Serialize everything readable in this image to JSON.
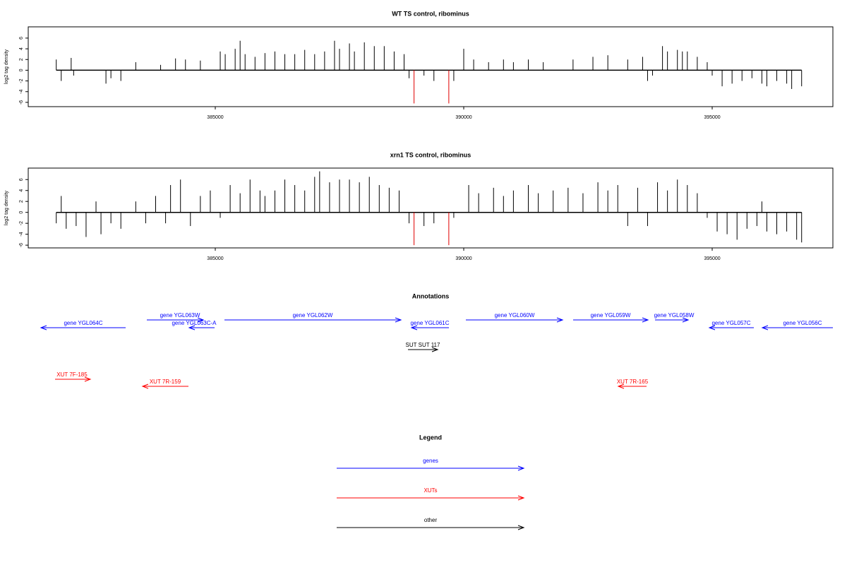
{
  "chart_data": [
    {
      "type": "bar",
      "title": "WT TS control, ribominus",
      "ylabel": "log2 tag density",
      "x": [
        381800,
        381900,
        382100,
        382150,
        382800,
        382900,
        383100,
        383400,
        383900,
        384200,
        384400,
        384700,
        385100,
        385200,
        385400,
        385500,
        385600,
        385800,
        386000,
        386200,
        386400,
        386600,
        386800,
        387000,
        387200,
        387400,
        387500,
        387700,
        387800,
        388000,
        388200,
        388400,
        388600,
        388800,
        388900,
        389200,
        389400,
        389800,
        390000,
        390200,
        390500,
        390800,
        391000,
        391300,
        391600,
        392200,
        392600,
        392900,
        393300,
        393600,
        393700,
        393800,
        394000,
        394100,
        394300,
        394400,
        394500,
        394700,
        394900,
        395000,
        395200,
        395400,
        395600,
        395800,
        396000,
        396100,
        396300,
        396500,
        396600,
        396800
      ],
      "values": [
        2,
        -2,
        2.3,
        -1,
        -2.5,
        -1.5,
        -2,
        1.5,
        1,
        2.2,
        2,
        1.8,
        3.5,
        3,
        4,
        5.5,
        3,
        2.5,
        3.2,
        3.5,
        3,
        3,
        3.8,
        3,
        3.5,
        5.5,
        4,
        5,
        3.5,
        5.2,
        4.5,
        4.5,
        3.5,
        3,
        -1.5,
        -1,
        -2,
        -2,
        4,
        2,
        1.5,
        2,
        1.5,
        2,
        1.5,
        2,
        2.5,
        2.8,
        2,
        2.5,
        -2,
        -1,
        4.5,
        3.5,
        3.8,
        3.5,
        3.5,
        2.5,
        1.5,
        -1,
        -3,
        -2.5,
        -2,
        -1.5,
        -2.5,
        -3,
        -2,
        -2.5,
        -3.5,
        -3
      ],
      "color": "#000000",
      "highlight": {
        "x": [
          389000,
          389700
        ],
        "values": [
          -6.2,
          -6.2
        ],
        "color": "#e00000"
      },
      "xlim": [
        381236,
        397429
      ],
      "xticks": [
        385000,
        390000,
        395000
      ],
      "ylim": [
        -6.8,
        8.1
      ],
      "yticks": [
        -6,
        -4,
        -2,
        0,
        2,
        4,
        6
      ]
    },
    {
      "type": "bar",
      "title": "xrn1 TS control, ribominus",
      "ylabel": "log2 tag density",
      "x": [
        381800,
        381900,
        382000,
        382200,
        382400,
        382600,
        382700,
        382900,
        383100,
        383400,
        383600,
        383800,
        384000,
        384100,
        384300,
        384500,
        384700,
        384900,
        385100,
        385300,
        385500,
        385700,
        385900,
        386000,
        386200,
        386400,
        386600,
        386800,
        387000,
        387100,
        387300,
        387500,
        387700,
        387900,
        388100,
        388300,
        388500,
        388700,
        388900,
        389200,
        389400,
        389800,
        390100,
        390300,
        390600,
        390800,
        391000,
        391300,
        391500,
        391800,
        392100,
        392400,
        392700,
        392900,
        393100,
        393300,
        393500,
        393700,
        393900,
        394100,
        394300,
        394500,
        394700,
        394900,
        395100,
        395300,
        395500,
        395700,
        395900,
        396000,
        396100,
        396300,
        396500,
        396700,
        396800
      ],
      "values": [
        -2,
        3,
        -3,
        -2.5,
        -4.5,
        2,
        -4,
        -2,
        -3,
        2,
        -2,
        3,
        -2,
        5,
        6,
        -2.5,
        3,
        4,
        -1,
        5,
        3.5,
        6,
        4,
        3,
        4,
        6,
        5,
        4,
        6.5,
        7.5,
        5.5,
        6,
        6,
        5.5,
        6.5,
        5,
        4.5,
        4,
        -2,
        -2.5,
        -2,
        -1,
        5,
        3.5,
        4.5,
        3,
        4,
        5,
        3.5,
        4,
        4.5,
        3.5,
        5.5,
        4,
        5,
        -2.5,
        4.5,
        -2.5,
        5.5,
        4,
        6,
        5,
        3.5,
        -1,
        -3.5,
        -4,
        -5,
        -3,
        -2.5,
        2,
        -3.5,
        -4,
        -3.5,
        -5,
        -5.5
      ],
      "color": "#000000",
      "highlight": {
        "x": [
          389000,
          389700
        ],
        "values": [
          -6,
          -6
        ],
        "color": "#e00000"
      },
      "xlim": [
        381236,
        397429
      ],
      "xticks": [
        385000,
        390000,
        395000
      ],
      "ylim": [
        -6.5,
        8.1
      ],
      "yticks": [
        -6,
        -4,
        -2,
        0,
        2,
        4,
        6
      ]
    }
  ],
  "annotations": {
    "title": "Annotations",
    "features": [
      {
        "label": "gene YGL064C",
        "color": "#0000ff"
      },
      {
        "label": "gene YGL063W",
        "color": "#0000ff"
      },
      {
        "label": "gene YGL063C-A",
        "color": "#0000ff"
      },
      {
        "label": "gene YGL062W",
        "color": "#0000ff"
      },
      {
        "label": "gene YGL061C",
        "color": "#0000ff"
      },
      {
        "label": "gene YGL060W",
        "color": "#0000ff"
      },
      {
        "label": "gene YGL059W",
        "color": "#0000ff"
      },
      {
        "label": "gene YGL058W",
        "color": "#0000ff"
      },
      {
        "label": "gene YGL057C",
        "color": "#0000ff"
      },
      {
        "label": "gene YGL056C",
        "color": "#0000ff"
      },
      {
        "label": "SUT SUT 117",
        "color": "#000000"
      },
      {
        "label": "XUT 7F-185",
        "color": "#ff0000"
      },
      {
        "label": "XUT 7R-159",
        "color": "#ff0000"
      },
      {
        "label": "XUT 7R-165",
        "color": "#ff0000"
      }
    ]
  },
  "legend": {
    "title": "Legend",
    "items": [
      {
        "label": "genes",
        "color": "#0000ff"
      },
      {
        "label": "XUTs",
        "color": "#ff0000"
      },
      {
        "label": "other",
        "color": "#000000"
      }
    ]
  }
}
